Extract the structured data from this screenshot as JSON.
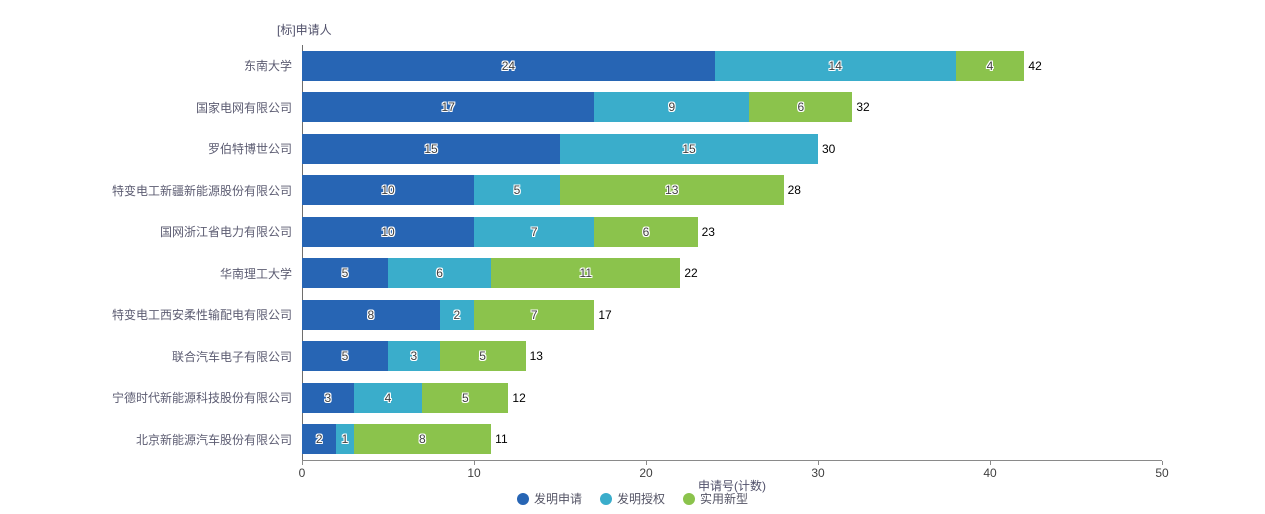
{
  "chart_data": {
    "type": "bar",
    "orientation": "horizontal",
    "stacked": true,
    "y_axis_title": "[标]申请人",
    "xlabel": "申请号(计数)",
    "xlim": [
      0,
      50
    ],
    "x_ticks": [
      0,
      10,
      20,
      30,
      40,
      50
    ],
    "grid": false,
    "legend_position": "bottom-center",
    "categories": [
      "东南大学",
      "国家电网有限公司",
      "罗伯特博世公司",
      "特变电工新疆新能源股份有限公司",
      "国网浙江省电力有限公司",
      "华南理工大学",
      "特变电工西安柔性输配电有限公司",
      "联合汽车电子有限公司",
      "宁德时代新能源科技股份有限公司",
      "北京新能源汽车股份有限公司"
    ],
    "series": [
      {
        "name": "发明申请",
        "slug": "invention-application",
        "color": "#2765b4",
        "values": [
          24,
          17,
          15,
          10,
          10,
          5,
          8,
          5,
          3,
          2
        ]
      },
      {
        "name": "发明授权",
        "slug": "invention-grant",
        "color": "#3aadcb",
        "values": [
          14,
          9,
          15,
          5,
          7,
          6,
          2,
          3,
          4,
          1
        ]
      },
      {
        "name": "实用新型",
        "slug": "utility-model",
        "color": "#8bc34c",
        "values": [
          4,
          6,
          0,
          13,
          6,
          11,
          7,
          5,
          5,
          8
        ]
      }
    ],
    "totals": [
      42,
      32,
      30,
      28,
      23,
      22,
      17,
      13,
      12,
      11
    ]
  }
}
